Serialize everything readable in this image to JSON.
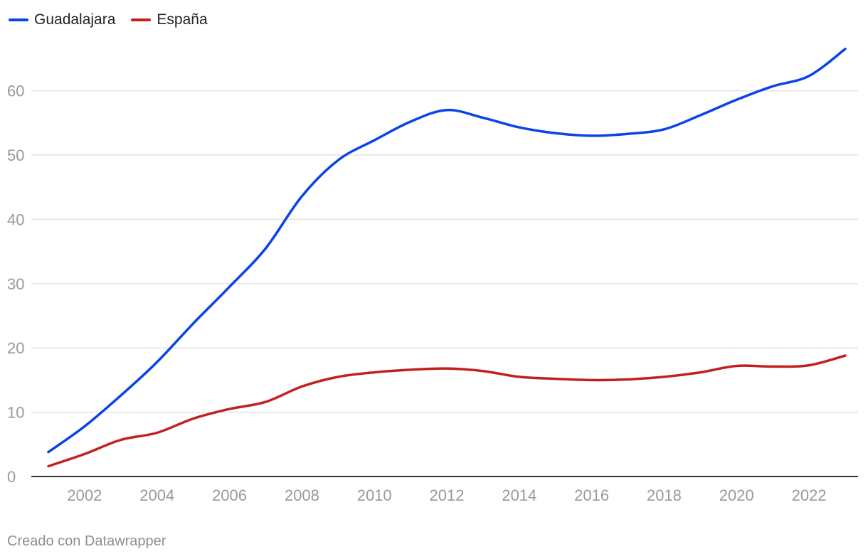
{
  "legend": [
    {
      "label": "Guadalajara",
      "color": "#0a43e8"
    },
    {
      "label": "España",
      "color": "#c2201f"
    }
  ],
  "credit": "Creado con Datawrapper",
  "chart_data": {
    "type": "line",
    "title": "",
    "xlabel": "",
    "ylabel": "",
    "xlim": [
      2001,
      2023
    ],
    "ylim": [
      0,
      66
    ],
    "x_ticks": [
      2002,
      2004,
      2006,
      2008,
      2010,
      2012,
      2014,
      2016,
      2018,
      2020,
      2022
    ],
    "y_ticks": [
      0,
      10,
      20,
      30,
      40,
      50,
      60
    ],
    "grid": "horizontal",
    "legend_position": "top-left",
    "x": [
      2001,
      2002,
      2003,
      2004,
      2005,
      2006,
      2007,
      2008,
      2009,
      2010,
      2011,
      2012,
      2013,
      2014,
      2015,
      2016,
      2017,
      2018,
      2019,
      2020,
      2021,
      2022,
      2023
    ],
    "series": [
      {
        "name": "Guadalajara",
        "color": "#0a43e8",
        "values": [
          3.8,
          7.8,
          12.6,
          17.8,
          23.8,
          29.5,
          35.5,
          43.6,
          49.2,
          52.3,
          55.2,
          57.0,
          55.8,
          54.3,
          53.4,
          53.0,
          53.3,
          54.0,
          56.2,
          58.6,
          60.7,
          62.3,
          66.5
        ]
      },
      {
        "name": "España",
        "color": "#c2201f",
        "values": [
          1.6,
          3.5,
          5.7,
          6.8,
          9.0,
          10.5,
          11.6,
          14.0,
          15.5,
          16.2,
          16.6,
          16.8,
          16.4,
          15.5,
          15.2,
          15.0,
          15.1,
          15.5,
          16.2,
          17.2,
          17.1,
          17.3,
          18.8
        ]
      }
    ]
  }
}
